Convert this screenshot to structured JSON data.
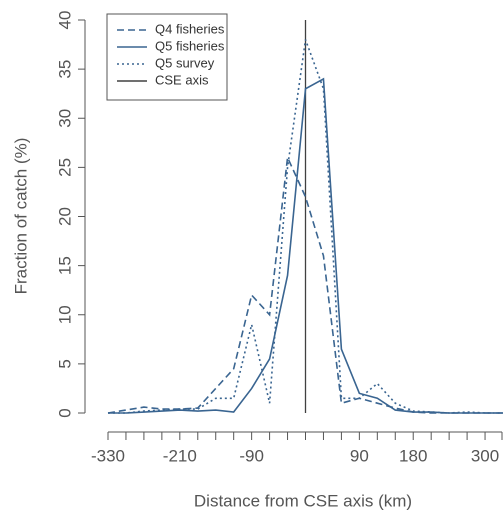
{
  "chart_data": {
    "type": "line",
    "xlabel": "Distance from CSE axis (km)",
    "ylabel": "Fraction of catch (%)",
    "x": [
      -330,
      -300,
      -270,
      -240,
      -210,
      -180,
      -150,
      -120,
      -90,
      -60,
      -30,
      0,
      30,
      60,
      90,
      120,
      150,
      180,
      210,
      240,
      270,
      300,
      330
    ],
    "series": [
      {
        "name": "Q4 fisheries",
        "color": "#3a6591",
        "dash": "dashed",
        "values": [
          0,
          0.3,
          0.6,
          0.4,
          0.4,
          0.5,
          2.5,
          4.5,
          12,
          10,
          26,
          22,
          16,
          1,
          1.5,
          1,
          0.5,
          0.1,
          0,
          0,
          0,
          0,
          0
        ]
      },
      {
        "name": "Q5 fisheries",
        "color": "#3a6591",
        "dash": "solid",
        "values": [
          0,
          0,
          0.1,
          0.2,
          0.3,
          0.2,
          0.3,
          0.1,
          2.5,
          5.5,
          14,
          33,
          34,
          6.5,
          2,
          1.5,
          0.3,
          0.1,
          0.1,
          0,
          0,
          0,
          0
        ]
      },
      {
        "name": "Q5 survey",
        "color": "#3a6591",
        "dash": "dotted",
        "values": [
          0,
          0,
          0.2,
          0.3,
          0.4,
          0.4,
          1.5,
          1.5,
          9,
          1,
          25,
          38,
          33,
          1.5,
          1.5,
          3,
          1,
          0.2,
          0.1,
          0,
          0.1,
          0,
          0
        ]
      }
    ],
    "vline": {
      "name": "CSE axis",
      "x": 0,
      "color": "#404040"
    },
    "xlim": [
      -330,
      330
    ],
    "xticks": [
      -330,
      -210,
      -90,
      90,
      180,
      300
    ],
    "xminorticks": [
      -300,
      -270,
      -240,
      -180,
      -150,
      -120,
      -60,
      -30,
      0,
      30,
      60,
      120,
      150,
      210,
      240,
      270,
      330
    ],
    "ylim": [
      0,
      40
    ],
    "yticks": [
      0,
      5,
      10,
      15,
      20,
      25,
      30,
      35,
      40
    ],
    "legend": "top-left"
  }
}
